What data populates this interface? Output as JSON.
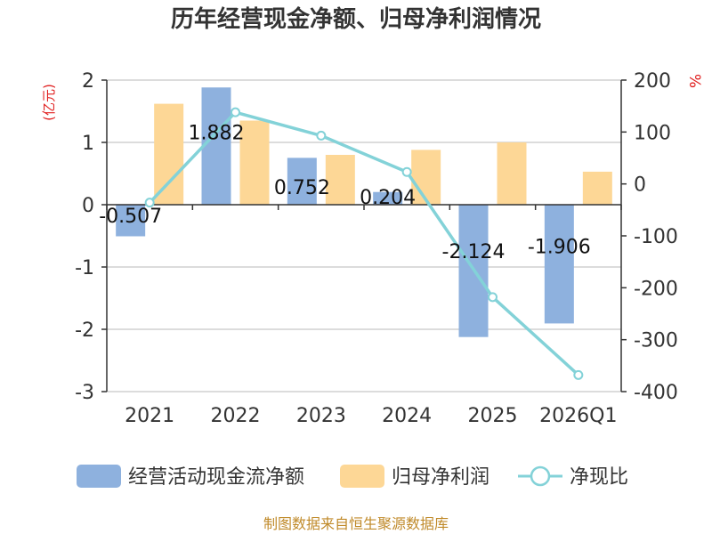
{
  "colors": {
    "cash_flow": "#8eb1de",
    "net_profit": "#fdd796",
    "ratio": "#83d2d8",
    "unit": "#e02020",
    "source": "#c08a2a"
  },
  "chart_data": {
    "type": "bar",
    "title": "历年经营现金净额、归母净利润情况",
    "categories": [
      "2021",
      "2022",
      "2023",
      "2024",
      "2025",
      "2026Q1"
    ],
    "left_axis": {
      "unit_label": "(亿元)",
      "min": -3,
      "max": 2,
      "ticks": [
        2,
        1,
        0,
        -1,
        -2,
        -3
      ]
    },
    "right_axis": {
      "unit_label": "%",
      "min": -400,
      "max": 200,
      "ticks": [
        200,
        100,
        0,
        -100,
        -200,
        -300,
        -400
      ]
    },
    "series": [
      {
        "name": "经营活动现金流净额",
        "type": "bar",
        "axis": "left",
        "color": "#8eb1de",
        "values": [
          -0.507,
          1.882,
          0.752,
          0.204,
          -2.124,
          -1.906
        ],
        "labels": [
          "-0.507",
          "1.882",
          "0.752",
          "0.204",
          "-2.124",
          "-1.906"
        ]
      },
      {
        "name": "归母净利润",
        "type": "bar",
        "axis": "left",
        "color": "#fdd796",
        "values": [
          1.62,
          1.35,
          0.8,
          0.88,
          1.0,
          0.53
        ]
      },
      {
        "name": "净现比",
        "type": "line",
        "axis": "right",
        "color": "#83d2d8",
        "values": [
          -36,
          138,
          93,
          23,
          -218,
          -368
        ]
      }
    ],
    "legend": [
      "经营活动现金流净额",
      "归母净利润",
      "净现比"
    ],
    "legend_position": "bottom",
    "grid": true
  },
  "footer": {
    "source": "制图数据来自恒生聚源数据库"
  }
}
